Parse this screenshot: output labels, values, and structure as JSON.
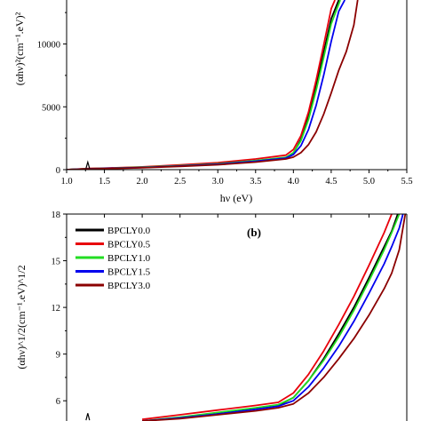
{
  "chart_data": [
    {
      "id": "a",
      "type": "line",
      "panel_label": "",
      "xlabel": "hν (eV)",
      "ylabel": "(αhν)²(cm⁻¹.eV)²",
      "xlim": [
        1.0,
        5.5
      ],
      "ylim": [
        0,
        13500
      ],
      "xticks": [
        "1.0",
        "1.5",
        "2.0",
        "2.5",
        "3.0",
        "3.5",
        "4.0",
        "4.5",
        "5.0",
        "5.5"
      ],
      "xtick_values": [
        1.0,
        1.5,
        2.0,
        2.5,
        3.0,
        3.5,
        4.0,
        4.5,
        5.0,
        5.5
      ],
      "yticks": [
        "0",
        "5000",
        "10000"
      ],
      "ytick_values": [
        0,
        5000,
        10000
      ],
      "series": [
        {
          "key": "BPCLY0.0",
          "color": "#000000",
          "x": [
            1.0,
            1.3,
            1.5,
            2.0,
            2.5,
            3.0,
            3.5,
            3.9,
            4.0,
            4.1,
            4.2,
            4.3,
            4.4,
            4.5,
            4.6
          ],
          "y": [
            0,
            80,
            100,
            180,
            300,
            450,
            700,
            950,
            1300,
            2400,
            4200,
            6600,
            9300,
            12000,
            13500
          ]
        },
        {
          "key": "BPCLY0.5",
          "color": "#e8000b",
          "x": [
            1.0,
            1.3,
            1.5,
            2.0,
            2.5,
            3.0,
            3.5,
            3.9,
            4.0,
            4.1,
            4.2,
            4.3,
            4.4,
            4.5,
            4.55
          ],
          "y": [
            0,
            90,
            120,
            220,
            380,
            560,
            850,
            1150,
            1600,
            2700,
            4600,
            7100,
            9900,
            12800,
            13500
          ]
        },
        {
          "key": "BPCLY1.0",
          "color": "#22dd22",
          "x": [
            1.0,
            1.3,
            1.5,
            2.0,
            2.5,
            3.0,
            3.5,
            3.9,
            4.0,
            4.1,
            4.2,
            4.3,
            4.4,
            4.5,
            4.62
          ],
          "y": [
            0,
            80,
            100,
            190,
            320,
            470,
            720,
            980,
            1350,
            2300,
            4000,
            6300,
            8900,
            11600,
            13500
          ]
        },
        {
          "key": "BPCLY1.5",
          "color": "#0000ee",
          "x": [
            1.0,
            1.3,
            1.5,
            2.0,
            2.5,
            3.0,
            3.5,
            3.9,
            4.0,
            4.1,
            4.2,
            4.3,
            4.4,
            4.5,
            4.6,
            4.68
          ],
          "y": [
            0,
            70,
            90,
            170,
            290,
            430,
            670,
            920,
            1200,
            1900,
            3200,
            5100,
            7500,
            10200,
            12600,
            13500
          ]
        },
        {
          "key": "BPCLY3.0",
          "color": "#8b0000",
          "x": [
            1.0,
            1.3,
            1.5,
            2.0,
            2.5,
            3.0,
            3.5,
            3.9,
            4.0,
            4.1,
            4.2,
            4.3,
            4.4,
            4.5,
            4.6,
            4.7,
            4.8,
            4.85
          ],
          "y": [
            0,
            60,
            80,
            150,
            260,
            390,
            600,
            850,
            1000,
            1350,
            2000,
            3000,
            4400,
            6100,
            7900,
            9400,
            11500,
            13500
          ]
        }
      ],
      "spike": {
        "x": 1.28,
        "y": 600
      }
    },
    {
      "id": "b",
      "type": "line",
      "panel_label": "(b)",
      "xlabel": "",
      "ylabel": "(αhν)^1/2(cm⁻¹.eV)^1/2",
      "xlim": [
        1.0,
        5.5
      ],
      "ylim": [
        4.7,
        18
      ],
      "yticks": [
        "6",
        "9",
        "12",
        "15",
        "18"
      ],
      "ytick_values": [
        6,
        9,
        12,
        15,
        18
      ],
      "legend_position": "top-left",
      "series": [
        {
          "name": "BPCLY0.0",
          "color": "#000000",
          "x": [
            2.0,
            2.5,
            3.0,
            3.5,
            3.8,
            4.0,
            4.2,
            4.4,
            4.6,
            4.8,
            5.0,
            5.2,
            5.3,
            5.38
          ],
          "y": [
            4.7,
            4.9,
            5.2,
            5.5,
            5.7,
            6.2,
            7.3,
            8.7,
            10.3,
            12.0,
            13.9,
            15.9,
            16.9,
            18
          ]
        },
        {
          "name": "BPCLY0.5",
          "color": "#e8000b",
          "x": [
            2.0,
            2.5,
            3.0,
            3.5,
            3.8,
            4.0,
            4.2,
            4.4,
            4.6,
            4.8,
            5.0,
            5.2,
            5.3
          ],
          "y": [
            4.8,
            5.1,
            5.4,
            5.7,
            5.9,
            6.5,
            7.7,
            9.2,
            10.9,
            12.7,
            14.7,
            16.8,
            18
          ]
        },
        {
          "name": "BPCLY1.0",
          "color": "#22dd22",
          "x": [
            2.0,
            2.5,
            3.0,
            3.5,
            3.8,
            4.0,
            4.2,
            4.4,
            4.6,
            4.8,
            5.0,
            5.2,
            5.3,
            5.4
          ],
          "y": [
            4.7,
            4.95,
            5.25,
            5.55,
            5.75,
            6.2,
            7.3,
            8.6,
            10.1,
            11.8,
            13.7,
            15.7,
            16.8,
            18
          ]
        },
        {
          "name": "BPCLY1.5",
          "color": "#0000ee",
          "x": [
            2.0,
            2.5,
            3.0,
            3.5,
            3.8,
            4.0,
            4.2,
            4.4,
            4.6,
            4.8,
            5.0,
            5.2,
            5.3,
            5.4,
            5.45
          ],
          "y": [
            4.7,
            4.9,
            5.15,
            5.45,
            5.65,
            6.0,
            6.9,
            8.1,
            9.5,
            11.1,
            12.9,
            14.8,
            15.9,
            17.1,
            18
          ]
        },
        {
          "name": "BPCLY3.0",
          "color": "#8b0000",
          "x": [
            2.0,
            2.5,
            3.0,
            3.5,
            3.8,
            4.0,
            4.2,
            4.4,
            4.6,
            4.8,
            5.0,
            5.2,
            5.3,
            5.4,
            5.48
          ],
          "y": [
            4.7,
            4.85,
            5.1,
            5.35,
            5.55,
            5.8,
            6.5,
            7.5,
            8.7,
            10.0,
            11.5,
            13.2,
            14.2,
            15.7,
            18
          ]
        }
      ],
      "spike": {
        "x": 1.28,
        "y": 5.2
      }
    }
  ]
}
